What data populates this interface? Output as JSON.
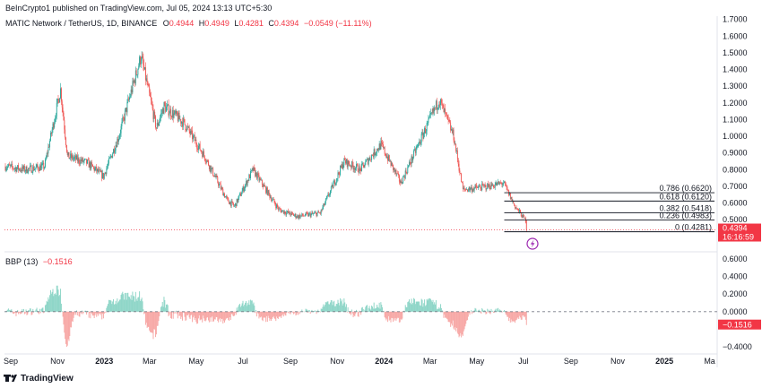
{
  "header": {
    "published": "BeInCrypto1 published on TradingView.com, Jul 05, 2024 13:13 UTC+5:30",
    "symbol": "MATIC Network / TetherUS, 1D, BINANCE",
    "o_label": "O",
    "o_value": "0.4944",
    "h_label": "H",
    "h_value": "0.4949",
    "l_label": "L",
    "l_value": "0.4281",
    "c_label": "C",
    "c_value": "0.4394",
    "change": "−0.0549 (−11.11%)"
  },
  "indicator": {
    "name": "BBP (13)",
    "value": "−0.1516"
  },
  "footer": {
    "brand": "TradingView"
  },
  "colors": {
    "up": "#26a69a",
    "down": "#ef5350",
    "bbp_up": "#8fd6c8",
    "bbp_down": "#f7a9a7",
    "price_tag": "#f23645"
  },
  "chart_data": [
    {
      "type": "candlestick",
      "title": "MATIC Network / TetherUS, 1D, BINANCE",
      "x_ticks": [
        "Sep",
        "Nov",
        "2023",
        "Mar",
        "May",
        "Jul",
        "Sep",
        "Nov",
        "2024",
        "Mar",
        "May",
        "Jul",
        "Sep",
        "Nov",
        "2025",
        "Ma"
      ],
      "y_ticks": [
        "1.7000",
        "1.6000",
        "1.5000",
        "1.4000",
        "1.3000",
        "1.2000",
        "1.1000",
        "1.0000",
        "0.9000",
        "0.8000",
        "0.7000",
        "0.6000",
        "0.5000"
      ],
      "ylim": [
        0.41,
        1.72
      ],
      "last_price": "0.4394",
      "countdown": "16:16:59",
      "approx_close_path": [
        [
          "2022-08-25",
          0.82
        ],
        [
          "2022-09-20",
          0.8
        ],
        [
          "2022-10-15",
          0.82
        ],
        [
          "2022-11-05",
          1.28
        ],
        [
          "2022-11-14",
          0.88
        ],
        [
          "2022-12-10",
          0.84
        ],
        [
          "2022-12-31",
          0.76
        ],
        [
          "2023-01-20",
          1.0
        ],
        [
          "2023-02-18",
          1.48
        ],
        [
          "2023-03-10",
          1.05
        ],
        [
          "2023-03-20",
          1.18
        ],
        [
          "2023-04-15",
          1.08
        ],
        [
          "2023-05-12",
          0.88
        ],
        [
          "2023-06-10",
          0.62
        ],
        [
          "2023-06-20",
          0.58
        ],
        [
          "2023-07-14",
          0.8
        ],
        [
          "2023-08-17",
          0.56
        ],
        [
          "2023-09-10",
          0.52
        ],
        [
          "2023-10-10",
          0.54
        ],
        [
          "2023-11-10",
          0.85
        ],
        [
          "2023-12-01",
          0.8
        ],
        [
          "2023-12-28",
          0.95
        ],
        [
          "2024-01-23",
          0.72
        ],
        [
          "2024-02-15",
          0.95
        ],
        [
          "2024-03-13",
          1.22
        ],
        [
          "2024-04-01",
          1.0
        ],
        [
          "2024-04-13",
          0.68
        ],
        [
          "2024-05-15",
          0.7
        ],
        [
          "2024-06-05",
          0.72
        ],
        [
          "2024-06-20",
          0.58
        ],
        [
          "2024-07-04",
          0.495
        ],
        [
          "2024-07-05",
          0.4394
        ]
      ],
      "fib_levels": [
        {
          "label": "0.786 (0.6620)",
          "price": 0.662
        },
        {
          "label": "0.618 (0.6120)",
          "price": 0.612
        },
        {
          "label": "0.382 (0.5418)",
          "price": 0.5418
        },
        {
          "label": "0.236 (0.4983)",
          "price": 0.4983
        },
        {
          "label": "0 (0.4281)",
          "price": 0.4281
        }
      ]
    },
    {
      "type": "bar",
      "title": "BBP (13)",
      "y_ticks": [
        "0.6000",
        "0.4000",
        "0.2000",
        "0.0000",
        "−0.4000"
      ],
      "ylim": [
        -0.45,
        0.65
      ],
      "last_value": "−0.1516"
    }
  ]
}
